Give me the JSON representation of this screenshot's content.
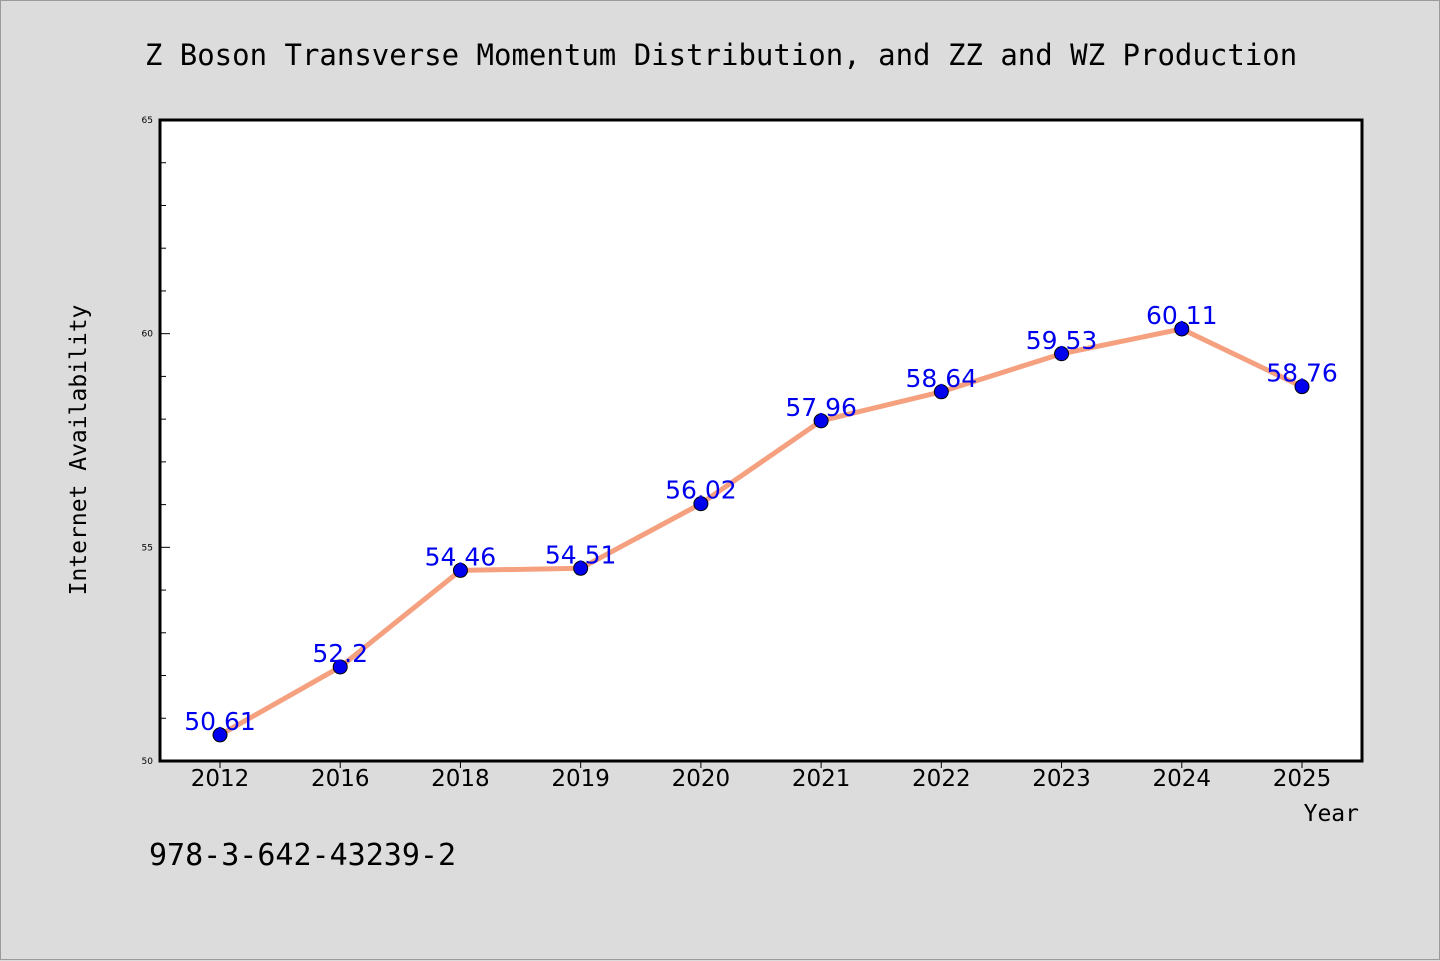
{
  "chart_data": {
    "type": "line",
    "title": "Z Boson Transverse Momentum Distribution, and ZZ and WZ Production",
    "xlabel": "Year",
    "ylabel": "Internet Availability",
    "categories": [
      "2012",
      "2016",
      "2018",
      "2019",
      "2020",
      "2021",
      "2022",
      "2023",
      "2024",
      "2025"
    ],
    "series": [
      {
        "values": [
          50.61,
          52.2,
          54.46,
          54.51,
          56.02,
          57.96,
          58.64,
          59.53,
          60.11,
          58.76
        ],
        "labels": [
          "50.61",
          "52.2",
          "54.46",
          "54.51",
          "56.02",
          "57.96",
          "58.64",
          "59.53",
          "60.11",
          "58.76"
        ],
        "line_color": "#f5a07f",
        "marker_color": "#0000ee",
        "label_color": "#0000ee"
      }
    ],
    "ylim": [
      50,
      65
    ],
    "yticks": [
      "50",
      "55",
      "60",
      "65"
    ],
    "y_minor_step": 1,
    "grid": false,
    "legend": "none"
  },
  "footnote": "978-3-642-43239-2",
  "colors": {
    "background": "#dcdcdc",
    "plot_background": "#ffffff",
    "axis": "#000000"
  }
}
